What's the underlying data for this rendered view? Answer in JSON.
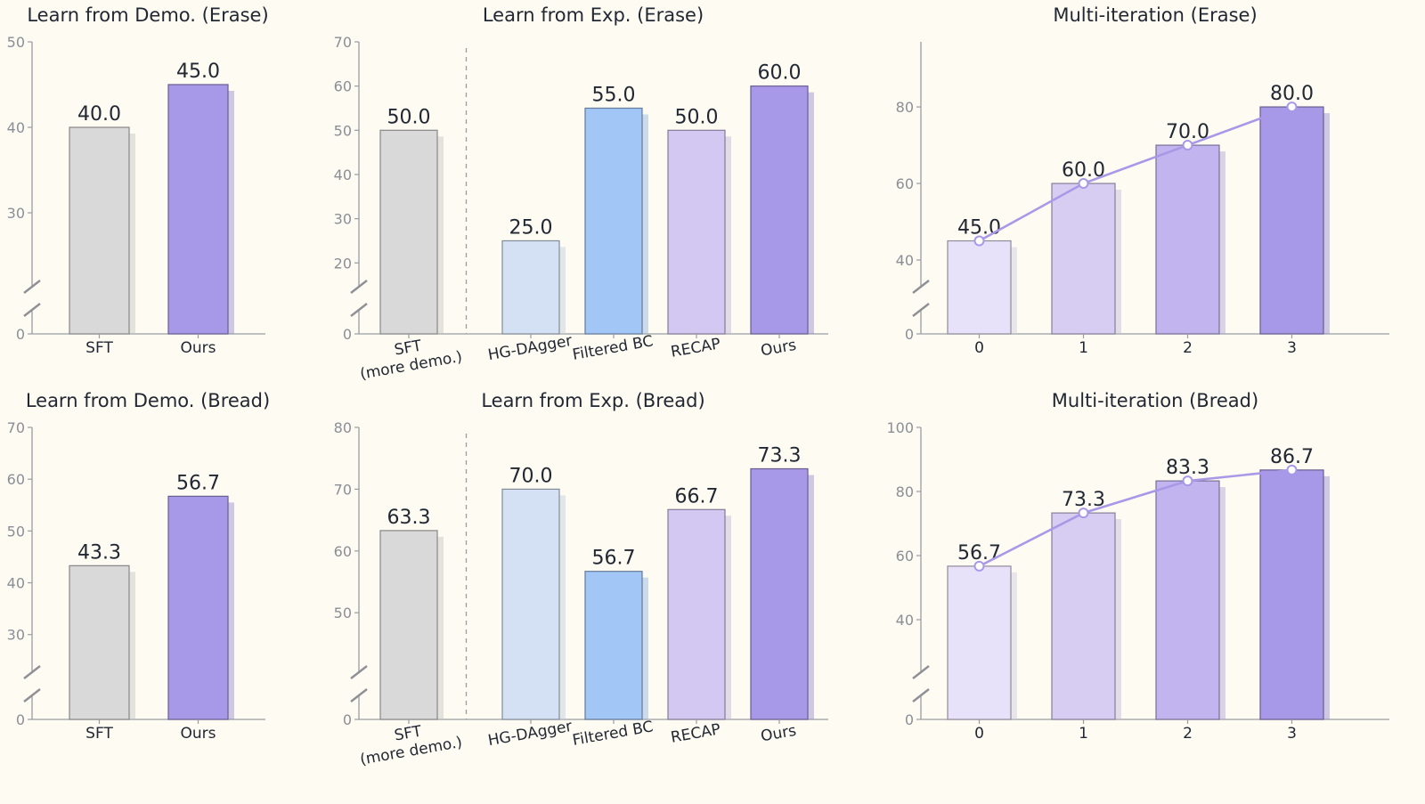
{
  "chart_data": [
    {
      "id": "demo-erase",
      "type": "bar",
      "title": "Learn from Demo. (Erase)",
      "categories": [
        "SFT",
        "Ours"
      ],
      "values": [
        40.0,
        45.0
      ],
      "value_labels": [
        "40.0",
        "45.0"
      ],
      "colors": [
        "#d9d9d9",
        "#a898e8"
      ],
      "yticks": [
        0,
        30,
        40,
        50
      ],
      "ylim_display": [
        20,
        50
      ],
      "axis_break": true
    },
    {
      "id": "exp-erase",
      "type": "bar",
      "title": "Learn from Exp. (Erase)",
      "categories": [
        "SFT\n(more demo.)",
        "HG-DAgger",
        "Filtered BC",
        "RECAP",
        "Ours"
      ],
      "values": [
        50.0,
        25.0,
        55.0,
        50.0,
        60.0
      ],
      "value_labels": [
        "50.0",
        "25.0",
        "55.0",
        "50.0",
        "60.0"
      ],
      "colors": [
        "#d9d9d9",
        "#d4e1f5",
        "#a2c6f6",
        "#d3c8f2",
        "#a898e8"
      ],
      "yticks": [
        0,
        20,
        30,
        40,
        50,
        60,
        70
      ],
      "ylim_display": [
        12,
        70
      ],
      "axis_break": true,
      "separator_after": 0
    },
    {
      "id": "iter-erase",
      "type": "bar+line",
      "title": "Multi-iteration (Erase)",
      "categories": [
        "0",
        "1",
        "2",
        "3"
      ],
      "values": [
        45.0,
        60.0,
        70.0,
        80.0
      ],
      "value_labels": [
        "45.0",
        "60.0",
        "70.0",
        "80.0"
      ],
      "colors": [
        "#e7e2f9",
        "#d7cdf3",
        "#c2b4ef",
        "#a898e8"
      ],
      "line_color": "#a898e8",
      "yticks": [
        0,
        40,
        60,
        80
      ],
      "ylim_display": [
        30,
        97
      ],
      "axis_break": true
    },
    {
      "id": "demo-bread",
      "type": "bar",
      "title": "Learn from Demo. (Bread)",
      "categories": [
        "SFT",
        "Ours"
      ],
      "values": [
        43.3,
        56.7
      ],
      "value_labels": [
        "43.3",
        "56.7"
      ],
      "colors": [
        "#d9d9d9",
        "#a898e8"
      ],
      "yticks": [
        0,
        30,
        40,
        50,
        60,
        70
      ],
      "ylim_display": [
        20.5,
        70
      ],
      "axis_break": true
    },
    {
      "id": "exp-bread",
      "type": "bar",
      "title": "Learn from Exp. (Bread)",
      "categories": [
        "SFT\n(more demo.)",
        "HG-DAgger",
        "Filtered BC",
        "RECAP",
        "Ours"
      ],
      "values": [
        63.3,
        70.0,
        56.7,
        66.7,
        73.3
      ],
      "value_labels": [
        "63.3",
        "70.0",
        "56.7",
        "66.7",
        "73.3"
      ],
      "colors": [
        "#d9d9d9",
        "#d4e1f5",
        "#a2c6f6",
        "#d3c8f2",
        "#a898e8"
      ],
      "yticks": [
        0,
        50,
        60,
        70,
        80
      ],
      "ylim_display": [
        38.5,
        80
      ],
      "axis_break": true,
      "separator_after": 0
    },
    {
      "id": "iter-bread",
      "type": "bar+line",
      "title": "Multi-iteration (Bread)",
      "categories": [
        "0",
        "1",
        "2",
        "3"
      ],
      "values": [
        56.7,
        73.3,
        83.3,
        86.7
      ],
      "value_labels": [
        "56.7",
        "73.3",
        "83.3",
        "86.7"
      ],
      "colors": [
        "#e7e2f9",
        "#d7cdf3",
        "#c2b4ef",
        "#a898e8"
      ],
      "line_color": "#a898e8",
      "yticks": [
        0,
        40,
        60,
        80,
        100
      ],
      "ylim_display": [
        20,
        100
      ],
      "axis_break": true
    }
  ]
}
